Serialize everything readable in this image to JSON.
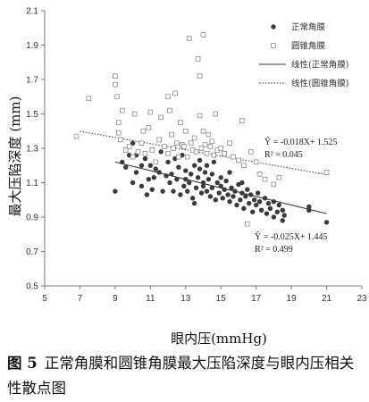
{
  "figure": {
    "number": "图 5",
    "caption": "正常角膜和圆锥角膜最大压陷深度与眼内压相关性散点图"
  },
  "chart_data": {
    "type": "scatter",
    "xlabel": "眼内压(mmHg)",
    "ylabel": "最大压陷深度 (mm)",
    "xlim": [
      5,
      23
    ],
    "ylim": [
      0.5,
      2.1
    ],
    "xticks": [
      5,
      7,
      9,
      11,
      13,
      15,
      17,
      19,
      21,
      23
    ],
    "yticks": [
      0.5,
      0.7,
      0.9,
      1.1,
      1.3,
      1.5,
      1.7,
      1.9,
      2.1
    ],
    "grid": false,
    "legend_position": "top-right",
    "series": [
      {
        "name": "正常角膜",
        "marker": "filled-circle",
        "color": "#3a3a3a",
        "points": [
          [
            9.0,
            1.05
          ],
          [
            9.4,
            1.22
          ],
          [
            9.6,
            1.19
          ],
          [
            9.8,
            1.26
          ],
          [
            10.0,
            1.33
          ],
          [
            10.0,
            1.1
          ],
          [
            10.2,
            1.26
          ],
          [
            10.2,
            1.16
          ],
          [
            10.5,
            1.2
          ],
          [
            10.5,
            1.08
          ],
          [
            10.7,
            1.24
          ],
          [
            10.9,
            1.12
          ],
          [
            11.0,
            1.2
          ],
          [
            11.1,
            1.06
          ],
          [
            11.3,
            1.18
          ],
          [
            11.5,
            1.16
          ],
          [
            11.6,
            1.28
          ],
          [
            11.7,
            1.05
          ],
          [
            11.9,
            1.14
          ],
          [
            12.0,
            1.22
          ],
          [
            12.1,
            1.1
          ],
          [
            12.2,
            1.15
          ],
          [
            12.3,
            1.05
          ],
          [
            12.5,
            1.12
          ],
          [
            12.6,
            1.19
          ],
          [
            12.7,
            1.03
          ],
          [
            12.8,
            1.26
          ],
          [
            12.9,
            1.08
          ],
          [
            13.0,
            1.17
          ],
          [
            13.0,
            1.12
          ],
          [
            13.1,
            1.05
          ],
          [
            13.2,
            1.1
          ],
          [
            13.3,
            1.15
          ],
          [
            13.4,
            1.01
          ],
          [
            13.5,
            0.98
          ],
          [
            13.5,
            1.2
          ],
          [
            13.6,
            1.07
          ],
          [
            13.7,
            1.13
          ],
          [
            13.8,
            1.18
          ],
          [
            13.9,
            1.04
          ],
          [
            14.0,
            1.1
          ],
          [
            14.0,
            1.08
          ],
          [
            14.1,
            1.16
          ],
          [
            14.2,
            1.05
          ],
          [
            14.3,
            1.12
          ],
          [
            14.4,
            1.02
          ],
          [
            14.5,
            1.15
          ],
          [
            14.5,
            1.07
          ],
          [
            14.6,
            1.22
          ],
          [
            14.7,
            1.0
          ],
          [
            14.8,
            1.1
          ],
          [
            14.9,
            1.04
          ],
          [
            15.0,
            1.08
          ],
          [
            15.0,
            1.13
          ],
          [
            15.1,
            1.01
          ],
          [
            15.2,
            1.06
          ],
          [
            15.3,
            1.11
          ],
          [
            15.4,
            1.03
          ],
          [
            15.5,
            0.99
          ],
          [
            15.6,
            1.07
          ],
          [
            15.7,
            1.02
          ],
          [
            15.8,
            1.05
          ],
          [
            15.9,
            0.97
          ],
          [
            16.0,
            1.09
          ],
          [
            16.1,
            1.0
          ],
          [
            16.2,
            1.04
          ],
          [
            16.3,
            0.95
          ],
          [
            16.4,
            1.02
          ],
          [
            16.5,
            1.06
          ],
          [
            16.6,
            0.98
          ],
          [
            16.7,
            1.03
          ],
          [
            16.8,
            0.93
          ],
          [
            16.9,
            1.0
          ],
          [
            17.0,
            0.97
          ],
          [
            17.1,
            1.04
          ],
          [
            17.2,
            0.99
          ],
          [
            17.3,
            0.94
          ],
          [
            17.5,
            1.01
          ],
          [
            17.6,
            0.92
          ],
          [
            17.7,
            0.98
          ],
          [
            17.8,
            0.95
          ],
          [
            18.0,
            0.99
          ],
          [
            18.0,
            0.9
          ],
          [
            18.2,
            0.93
          ],
          [
            18.3,
            0.97
          ],
          [
            18.5,
            0.88
          ],
          [
            18.5,
            0.94
          ],
          [
            18.6,
            0.91
          ],
          [
            20.0,
            0.96
          ],
          [
            20.0,
            0.94
          ],
          [
            21.0,
            0.87
          ],
          [
            14.2,
            1.2
          ],
          [
            13.8,
            1.23
          ],
          [
            15.5,
            1.16
          ],
          [
            12.4,
            1.24
          ],
          [
            16.2,
            1.1
          ],
          [
            11.2,
            1.13
          ],
          [
            10.8,
            1.03
          ]
        ]
      },
      {
        "name": "圆锥角膜",
        "marker": "open-square",
        "color": "#8a8a8a",
        "points": [
          [
            6.8,
            1.37
          ],
          [
            7.5,
            1.59
          ],
          [
            9.0,
            1.72
          ],
          [
            9.0,
            1.67
          ],
          [
            9.1,
            1.6
          ],
          [
            9.2,
            1.45
          ],
          [
            9.2,
            1.39
          ],
          [
            9.3,
            1.35
          ],
          [
            9.4,
            1.52
          ],
          [
            9.6,
            1.29
          ],
          [
            9.8,
            1.31
          ],
          [
            10.0,
            1.25
          ],
          [
            10.1,
            1.5
          ],
          [
            10.3,
            1.28
          ],
          [
            10.5,
            1.33
          ],
          [
            10.7,
            1.27
          ],
          [
            10.9,
            1.42
          ],
          [
            11.0,
            1.51
          ],
          [
            11.1,
            1.29
          ],
          [
            11.3,
            1.22
          ],
          [
            11.5,
            1.35
          ],
          [
            11.6,
            1.48
          ],
          [
            11.8,
            1.31
          ],
          [
            12.0,
            1.6
          ],
          [
            12.0,
            1.27
          ],
          [
            12.1,
            1.52
          ],
          [
            12.2,
            1.38
          ],
          [
            12.3,
            1.3
          ],
          [
            12.5,
            1.33
          ],
          [
            12.6,
            1.25
          ],
          [
            12.7,
            1.45
          ],
          [
            12.8,
            1.32
          ],
          [
            12.9,
            1.31
          ],
          [
            13.0,
            1.4
          ],
          [
            13.1,
            1.25
          ],
          [
            13.2,
            1.94
          ],
          [
            13.3,
            1.33
          ],
          [
            13.4,
            1.29
          ],
          [
            13.5,
            1.36
          ],
          [
            13.6,
            1.28
          ],
          [
            13.7,
            1.82
          ],
          [
            13.8,
            1.72
          ],
          [
            13.8,
            1.49
          ],
          [
            13.9,
            1.3
          ],
          [
            14.0,
            1.96
          ],
          [
            14.0,
            1.4
          ],
          [
            14.1,
            1.32
          ],
          [
            14.2,
            1.27
          ],
          [
            14.3,
            1.38
          ],
          [
            14.4,
            1.31
          ],
          [
            14.5,
            1.34
          ],
          [
            14.6,
            1.26
          ],
          [
            14.7,
            1.5
          ],
          [
            14.8,
            1.29
          ],
          [
            15.0,
            1.3
          ],
          [
            15.2,
            1.27
          ],
          [
            15.5,
            1.33
          ],
          [
            15.7,
            1.25
          ],
          [
            16.0,
            1.23
          ],
          [
            16.2,
            1.46
          ],
          [
            16.3,
            1.2
          ],
          [
            16.5,
            0.86
          ],
          [
            16.7,
            1.28
          ],
          [
            17.0,
            1.22
          ],
          [
            17.2,
            1.15
          ],
          [
            17.5,
            1.12
          ],
          [
            18.0,
            1.09
          ],
          [
            18.3,
            1.13
          ],
          [
            21.0,
            1.16
          ],
          [
            10.6,
            1.4
          ],
          [
            12.4,
            1.62
          ]
        ]
      }
    ],
    "fit_lines": [
      {
        "name": "线性(正常角膜)",
        "style": "solid",
        "color": "#333333",
        "slope": -0.025,
        "intercept": 1.445,
        "x_range": [
          9,
          21
        ],
        "equation": "Ŷ = -0.025X+ 1.445",
        "r2": "R² = 0.499"
      },
      {
        "name": "线性(圆锥角膜)",
        "style": "dotted",
        "color": "#555555",
        "slope": -0.018,
        "intercept": 1.525,
        "x_range": [
          7,
          21
        ],
        "equation": "Ŷ = -0.018X+ 1.525",
        "r2": "R² = 0.045"
      }
    ]
  }
}
